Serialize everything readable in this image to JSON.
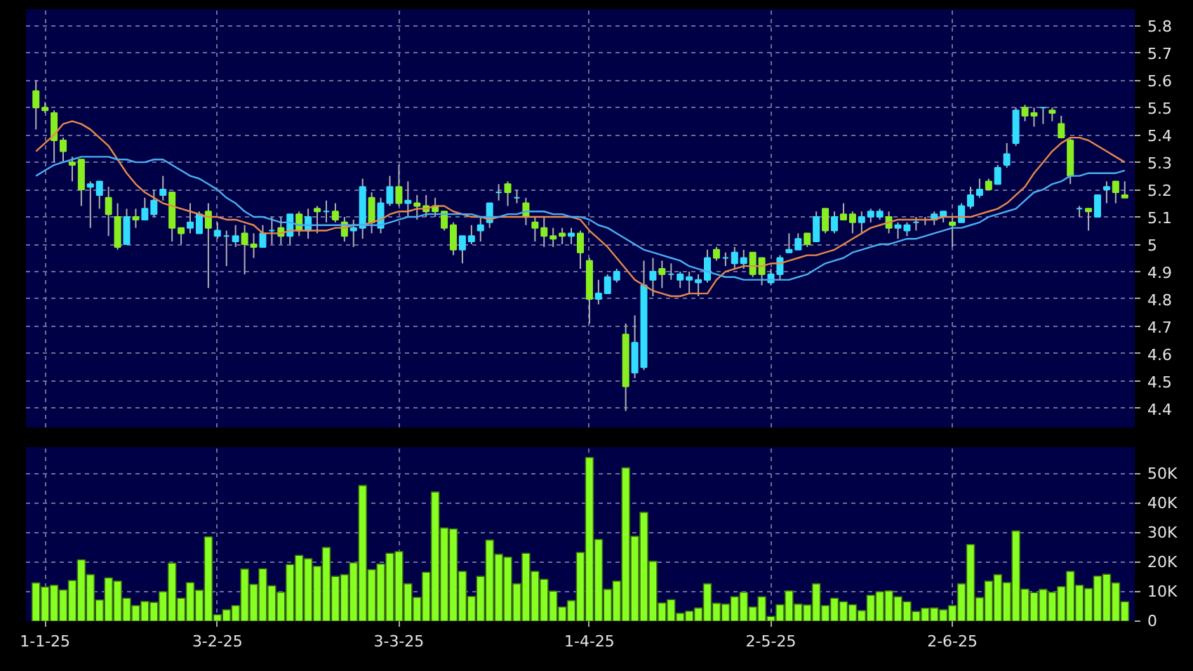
{
  "chart_data": [
    {
      "type": "candlestick",
      "ylim": [
        4.33,
        5.86
      ],
      "categories": [
        null,
        null,
        null,
        null,
        null,
        null,
        null,
        null,
        null,
        null,
        null,
        null,
        null,
        null,
        null,
        null,
        null,
        null,
        null,
        null,
        null,
        null,
        null,
        null,
        null,
        null,
        null,
        null,
        null,
        null,
        null,
        null,
        null,
        null,
        null,
        null,
        null,
        null,
        null,
        null,
        null,
        null,
        null,
        null,
        null,
        null,
        null,
        null,
        null,
        null,
        null,
        null,
        null,
        null,
        null,
        null,
        null,
        null,
        null,
        null,
        null,
        null,
        null,
        null,
        null,
        null,
        null,
        null,
        null,
        null,
        null,
        null,
        null,
        null,
        null,
        null,
        null,
        null,
        null,
        null,
        null,
        null,
        null,
        null,
        null,
        null,
        null,
        null,
        null,
        null,
        null,
        null,
        null,
        null,
        null,
        null,
        null,
        null,
        null,
        null,
        null,
        null,
        null,
        null,
        null,
        null,
        null,
        null,
        null,
        null,
        null,
        null,
        null,
        null,
        null,
        null,
        null,
        null,
        null,
        null,
        null
      ],
      "yticks": [
        4.4,
        4.5,
        4.6,
        4.7,
        4.8,
        4.9,
        5,
        5.1,
        5.2,
        5.3,
        5.4,
        5.5,
        5.6,
        5.7,
        5.8
      ],
      "grid": true,
      "tick_labels": "y",
      "series": [
        {
          "type": "candlestick",
          "ohlc": [
            [
              5.56,
              5.6,
              5.42,
              5.5
            ],
            [
              5.5,
              5.52,
              5.48,
              5.49
            ],
            [
              5.48,
              5.49,
              5.3,
              5.38
            ],
            [
              5.38,
              5.39,
              5.3,
              5.34
            ],
            [
              5.3,
              5.32,
              5.23,
              5.29
            ],
            [
              5.31,
              5.31,
              5.14,
              5.2
            ],
            [
              5.21,
              5.23,
              5.06,
              5.22
            ],
            [
              5.18,
              5.23,
              5.13,
              5.23
            ],
            [
              5.17,
              5.21,
              5.03,
              5.11
            ],
            [
              5.1,
              5.15,
              4.98,
              4.99
            ],
            [
              5.0,
              5.13,
              5.0,
              5.1
            ],
            [
              5.1,
              5.13,
              5.06,
              5.09
            ],
            [
              5.09,
              5.17,
              5.09,
              5.13
            ],
            [
              5.11,
              5.2,
              5.1,
              5.16
            ],
            [
              5.18,
              5.25,
              5.16,
              5.2
            ],
            [
              5.19,
              5.19,
              5.01,
              5.06
            ],
            [
              5.06,
              5.06,
              5.0,
              5.04
            ],
            [
              5.06,
              5.15,
              5.04,
              5.08
            ],
            [
              5.04,
              5.12,
              5.04,
              5.11
            ],
            [
              5.12,
              5.15,
              4.84,
              5.06
            ],
            [
              5.03,
              5.08,
              5.02,
              5.05
            ],
            [
              5.03,
              5.05,
              4.92,
              5.03
            ],
            [
              5.01,
              5.07,
              4.99,
              5.03
            ],
            [
              5.04,
              5.07,
              4.89,
              5.0
            ],
            [
              5.0,
              5.04,
              4.95,
              4.99
            ],
            [
              4.99,
              5.07,
              4.99,
              5.04
            ],
            [
              5.05,
              5.1,
              5.0,
              5.05
            ],
            [
              5.06,
              5.1,
              5.0,
              5.03
            ],
            [
              5.03,
              5.11,
              5.0,
              5.11
            ],
            [
              5.11,
              5.12,
              5.03,
              5.05
            ],
            [
              5.05,
              5.13,
              5.02,
              5.1
            ],
            [
              5.13,
              5.14,
              5.04,
              5.12
            ],
            [
              5.12,
              5.16,
              5.08,
              5.12
            ],
            [
              5.12,
              5.15,
              5.08,
              5.09
            ],
            [
              5.08,
              5.1,
              5.01,
              5.03
            ],
            [
              5.05,
              5.09,
              4.99,
              5.06
            ],
            [
              5.06,
              5.24,
              5.02,
              5.21
            ],
            [
              5.17,
              5.19,
              5.04,
              5.08
            ],
            [
              5.06,
              5.17,
              5.04,
              5.15
            ],
            [
              5.15,
              5.25,
              5.14,
              5.21
            ],
            [
              5.21,
              5.29,
              5.14,
              5.15
            ],
            [
              5.15,
              5.23,
              5.1,
              5.16
            ],
            [
              5.15,
              5.18,
              5.09,
              5.14
            ],
            [
              5.14,
              5.18,
              5.1,
              5.12
            ],
            [
              5.14,
              5.17,
              5.1,
              5.12
            ],
            [
              5.12,
              5.12,
              5.05,
              5.06
            ],
            [
              5.07,
              5.08,
              4.96,
              4.98
            ],
            [
              4.98,
              5.03,
              4.93,
              5.03
            ],
            [
              5.01,
              5.07,
              5.0,
              5.03
            ],
            [
              5.05,
              5.1,
              5.01,
              5.07
            ],
            [
              5.08,
              5.15,
              5.06,
              5.15
            ],
            [
              5.19,
              5.22,
              5.16,
              5.19
            ],
            [
              5.22,
              5.23,
              5.14,
              5.19
            ],
            [
              5.17,
              5.2,
              5.15,
              5.17
            ],
            [
              5.15,
              5.17,
              5.07,
              5.1
            ],
            [
              5.08,
              5.1,
              5.01,
              5.06
            ],
            [
              5.06,
              5.1,
              4.99,
              5.03
            ],
            [
              5.03,
              5.06,
              4.99,
              5.02
            ],
            [
              5.04,
              5.06,
              5.0,
              5.03
            ],
            [
              5.03,
              5.06,
              5.0,
              5.04
            ],
            [
              5.04,
              5.05,
              4.91,
              4.97
            ],
            [
              4.94,
              4.95,
              4.71,
              4.8
            ],
            [
              4.8,
              4.87,
              4.78,
              4.82
            ],
            [
              4.82,
              4.89,
              4.82,
              4.88
            ],
            [
              4.87,
              4.91,
              4.86,
              4.9
            ],
            [
              4.67,
              4.71,
              4.39,
              4.48
            ],
            [
              4.53,
              4.74,
              4.51,
              4.64
            ],
            [
              4.55,
              4.94,
              4.54,
              4.85
            ],
            [
              4.87,
              4.95,
              4.81,
              4.9
            ],
            [
              4.91,
              4.94,
              4.84,
              4.89
            ],
            [
              4.89,
              4.93,
              4.87,
              4.89
            ],
            [
              4.87,
              4.9,
              4.84,
              4.89
            ],
            [
              4.87,
              4.9,
              4.82,
              4.88
            ],
            [
              4.86,
              4.89,
              4.81,
              4.87
            ],
            [
              4.87,
              4.98,
              4.86,
              4.95
            ],
            [
              4.98,
              4.99,
              4.94,
              4.95
            ],
            [
              4.95,
              4.97,
              4.92,
              4.95
            ],
            [
              4.93,
              4.99,
              4.91,
              4.97
            ],
            [
              4.93,
              4.98,
              4.91,
              4.95
            ],
            [
              4.97,
              4.97,
              4.88,
              4.89
            ],
            [
              4.95,
              4.95,
              4.85,
              4.89
            ],
            [
              4.86,
              4.91,
              4.85,
              4.89
            ],
            [
              4.89,
              4.96,
              4.87,
              4.95
            ],
            [
              4.97,
              5.04,
              4.97,
              4.98
            ],
            [
              4.98,
              5.04,
              4.98,
              5.02
            ],
            [
              5.04,
              5.04,
              4.99,
              5.0
            ],
            [
              5.01,
              5.12,
              5.01,
              5.1
            ],
            [
              5.13,
              5.13,
              5.04,
              5.05
            ],
            [
              5.05,
              5.12,
              5.04,
              5.1
            ],
            [
              5.11,
              5.15,
              5.09,
              5.09
            ],
            [
              5.11,
              5.12,
              5.04,
              5.08
            ],
            [
              5.08,
              5.12,
              5.04,
              5.1
            ],
            [
              5.1,
              5.13,
              5.08,
              5.12
            ],
            [
              5.1,
              5.13,
              5.09,
              5.12
            ],
            [
              5.1,
              5.12,
              5.04,
              5.06
            ],
            [
              5.06,
              5.08,
              5.02,
              5.07
            ],
            [
              5.05,
              5.08,
              5.03,
              5.07
            ],
            [
              5.08,
              5.1,
              5.05,
              5.08
            ],
            [
              5.09,
              5.1,
              5.07,
              5.09
            ],
            [
              5.09,
              5.12,
              5.07,
              5.11
            ],
            [
              5.1,
              5.12,
              5.08,
              5.12
            ],
            [
              5.08,
              5.1,
              4.99,
              5.07
            ],
            [
              5.08,
              5.15,
              5.08,
              5.14
            ],
            [
              5.14,
              5.21,
              5.13,
              5.18
            ],
            [
              5.18,
              5.24,
              5.17,
              5.2
            ],
            [
              5.23,
              5.24,
              5.2,
              5.2
            ],
            [
              5.22,
              5.29,
              5.22,
              5.28
            ],
            [
              5.29,
              5.37,
              5.28,
              5.33
            ],
            [
              5.37,
              5.5,
              5.36,
              5.49
            ],
            [
              5.5,
              5.51,
              5.45,
              5.47
            ],
            [
              5.48,
              5.5,
              5.43,
              5.47
            ],
            [
              5.5,
              5.5,
              5.44,
              5.5
            ],
            [
              5.49,
              5.5,
              5.45,
              5.48
            ],
            [
              5.44,
              5.47,
              5.39,
              5.39
            ],
            [
              5.38,
              5.39,
              5.22,
              5.25
            ],
            [
              5.13,
              5.14,
              5.1,
              5.13
            ],
            [
              5.13,
              5.13,
              5.05,
              5.12
            ],
            [
              5.1,
              5.18,
              5.1,
              5.18
            ],
            [
              5.2,
              5.23,
              5.15,
              5.21
            ],
            [
              5.23,
              5.23,
              5.15,
              5.19
            ],
            [
              5.18,
              5.23,
              5.17,
              5.17
            ]
          ],
          "colors": [
            "#88ee22",
            "#88ee22",
            "#88ee22",
            "#88ee22",
            "#88ee22",
            "#88ee22",
            "#33ddff",
            "#33ddff",
            "#88ee22",
            "#88ee22",
            "#33ddff",
            "#88ee22",
            "#33ddff",
            "#33ddff",
            "#33ddff",
            "#88ee22",
            "#88ee22",
            "#33ddff",
            "#33ddff",
            "#88ee22",
            "#33ddff",
            "#33ddff",
            "#33ddff",
            "#88ee22",
            "#88ee22",
            "#33ddff",
            "#33ddff",
            "#88ee22",
            "#33ddff",
            "#88ee22",
            "#33ddff",
            "#88ee22",
            "#33ddff",
            "#88ee22",
            "#88ee22",
            "#33ddff",
            "#33ddff",
            "#88ee22",
            "#33ddff",
            "#33ddff",
            "#88ee22",
            "#33ddff",
            "#88ee22",
            "#88ee22",
            "#88ee22",
            "#88ee22",
            "#88ee22",
            "#33ddff",
            "#33ddff",
            "#33ddff",
            "#33ddff",
            "#33ddff",
            "#88ee22",
            "#33ddff",
            "#88ee22",
            "#88ee22",
            "#88ee22",
            "#88ee22",
            "#88ee22",
            "#33ddff",
            "#88ee22",
            "#88ee22",
            "#33ddff",
            "#33ddff",
            "#33ddff",
            "#88ee22",
            "#33ddff",
            "#33ddff",
            "#33ddff",
            "#88ee22",
            "#33ddff",
            "#33ddff",
            "#33ddff",
            "#33ddff",
            "#33ddff",
            "#88ee22",
            "#33ddff",
            "#33ddff",
            "#33ddff",
            "#88ee22",
            "#88ee22",
            "#33ddff",
            "#33ddff",
            "#33ddff",
            "#33ddff",
            "#88ee22",
            "#33ddff",
            "#88ee22",
            "#33ddff",
            "#88ee22",
            "#88ee22",
            "#33ddff",
            "#33ddff",
            "#33ddff",
            "#88ee22",
            "#33ddff",
            "#33ddff",
            "#33ddff",
            "#33ddff",
            "#33ddff",
            "#33ddff",
            "#88ee22",
            "#33ddff",
            "#33ddff",
            "#33ddff",
            "#88ee22",
            "#33ddff",
            "#33ddff",
            "#33ddff",
            "#88ee22",
            "#88ee22",
            "#33ddff",
            "#88ee22",
            "#88ee22",
            "#88ee22",
            "#33ddff",
            "#88ee22",
            "#33ddff",
            "#33ddff",
            "#88ee22",
            "#88ee22"
          ]
        },
        {
          "type": "line",
          "color": "#e8884a",
          "values": [
            5.34,
            5.37,
            5.4,
            5.44,
            5.45,
            5.44,
            5.42,
            5.39,
            5.36,
            5.31,
            5.26,
            5.22,
            5.19,
            5.17,
            5.15,
            5.14,
            5.13,
            5.12,
            5.11,
            5.1,
            5.1,
            5.09,
            5.09,
            5.08,
            5.07,
            5.04,
            5.04,
            5.04,
            5.05,
            5.05,
            5.05,
            5.05,
            5.05,
            5.06,
            5.06,
            5.07,
            5.07,
            5.08,
            5.09,
            5.11,
            5.12,
            5.12,
            5.13,
            5.13,
            5.14,
            5.14,
            5.12,
            5.11,
            5.1,
            5.1,
            5.09,
            5.1,
            5.1,
            5.1,
            5.1,
            5.1,
            5.1,
            5.1,
            5.1,
            5.1,
            5.09,
            5.05,
            5.02,
            4.99,
            4.95,
            4.91,
            4.87,
            4.85,
            4.83,
            4.82,
            4.81,
            4.81,
            4.82,
            4.82,
            4.82,
            4.87,
            4.9,
            4.91,
            4.92,
            4.92,
            4.92,
            4.93,
            4.93,
            4.94,
            4.95,
            4.96,
            4.96,
            4.97,
            4.98,
            5.0,
            5.02,
            5.04,
            5.06,
            5.07,
            5.08,
            5.09,
            5.09,
            5.09,
            5.09,
            5.09,
            5.1,
            5.1,
            5.1,
            5.1,
            5.11,
            5.12,
            5.13,
            5.15,
            5.18,
            5.21,
            5.26,
            5.3,
            5.34,
            5.37,
            5.39,
            5.39,
            5.38,
            5.36,
            5.34,
            5.32,
            5.3
          ]
        },
        {
          "type": "line",
          "color": "#4aaef0",
          "values": [
            5.25,
            5.27,
            5.29,
            5.3,
            5.31,
            5.32,
            5.32,
            5.32,
            5.32,
            5.31,
            5.31,
            5.3,
            5.3,
            5.31,
            5.31,
            5.29,
            5.27,
            5.25,
            5.24,
            5.22,
            5.2,
            5.17,
            5.15,
            5.12,
            5.1,
            5.1,
            5.09,
            5.08,
            5.08,
            5.07,
            5.07,
            5.07,
            5.07,
            5.07,
            5.07,
            5.07,
            5.07,
            5.07,
            5.07,
            5.08,
            5.09,
            5.1,
            5.1,
            5.11,
            5.11,
            5.11,
            5.11,
            5.11,
            5.11,
            5.1,
            5.1,
            5.1,
            5.11,
            5.11,
            5.12,
            5.12,
            5.12,
            5.11,
            5.11,
            5.1,
            5.1,
            5.09,
            5.07,
            5.06,
            5.04,
            5.02,
            5.0,
            4.98,
            4.97,
            4.96,
            4.95,
            4.94,
            4.92,
            4.91,
            4.9,
            4.89,
            4.88,
            4.88,
            4.87,
            4.87,
            4.87,
            4.87,
            4.87,
            4.87,
            4.88,
            4.89,
            4.91,
            4.93,
            4.94,
            4.95,
            4.97,
            4.98,
            4.99,
            5.0,
            5.0,
            5.01,
            5.02,
            5.02,
            5.03,
            5.04,
            5.05,
            5.06,
            5.06,
            5.07,
            5.08,
            5.1,
            5.11,
            5.12,
            5.13,
            5.16,
            5.19,
            5.2,
            5.22,
            5.23,
            5.25,
            5.25,
            5.26,
            5.26,
            5.26,
            5.26,
            5.27
          ]
        }
      ]
    },
    {
      "type": "bar",
      "color": "#88ff22",
      "ylim": [
        0,
        59000
      ],
      "categories": [
        null,
        "1-1-25",
        null,
        null,
        null,
        null,
        null,
        null,
        null,
        null,
        null,
        null,
        null,
        null,
        null,
        null,
        null,
        null,
        null,
        null,
        "3-2-25",
        null,
        null,
        null,
        null,
        null,
        null,
        null,
        null,
        null,
        null,
        null,
        null,
        null,
        null,
        null,
        null,
        null,
        null,
        null,
        "3-3-25",
        null,
        null,
        null,
        null,
        null,
        null,
        null,
        null,
        null,
        null,
        null,
        null,
        null,
        null,
        null,
        null,
        null,
        null,
        null,
        null,
        "1-4-25",
        null,
        null,
        null,
        null,
        null,
        null,
        null,
        null,
        null,
        null,
        null,
        null,
        null,
        null,
        null,
        null,
        null,
        null,
        null,
        "2-5-25",
        null,
        null,
        null,
        null,
        null,
        null,
        null,
        null,
        null,
        null,
        null,
        null,
        null,
        null,
        null,
        null,
        null,
        null,
        null,
        "2-6-25",
        null,
        null,
        null,
        null,
        null,
        null,
        null,
        null,
        null,
        null,
        null,
        null,
        null,
        null,
        null,
        null,
        null,
        null,
        null
      ],
      "yticks": [
        {
          "value": 0,
          "label": "0"
        },
        {
          "value": 10000,
          "label": "10K"
        },
        {
          "value": 20000,
          "label": "20K"
        },
        {
          "value": 30000,
          "label": "30K"
        },
        {
          "value": 40000,
          "label": "40K"
        },
        {
          "value": 50000,
          "label": "50K"
        }
      ],
      "grid": true,
      "values": [
        13000,
        11600,
        12200,
        10600,
        13800,
        20800,
        15800,
        7200,
        14700,
        13600,
        7800,
        5300,
        6700,
        6400,
        10000,
        19700,
        7800,
        13100,
        10500,
        28600,
        2200,
        3900,
        5300,
        17700,
        12500,
        17800,
        12000,
        9800,
        19200,
        22300,
        21200,
        18600,
        25000,
        15200,
        15800,
        19800,
        46000,
        17500,
        19400,
        23000,
        23600,
        12700,
        8100,
        16600,
        43800,
        31600,
        31300,
        16900,
        8400,
        15200,
        27500,
        22700,
        21700,
        12700,
        23000,
        16900,
        14200,
        10200,
        4800,
        7000,
        23300,
        55500,
        27700,
        10800,
        13600,
        52000,
        28800,
        36900,
        20300,
        6200,
        7300,
        2700,
        3400,
        4500,
        12700,
        6100,
        5800,
        8300,
        9800,
        4800,
        8300,
        1600,
        5600,
        10300,
        5800,
        5500,
        12700,
        5300,
        7800,
        6600,
        5600,
        3600,
        8800,
        10000,
        10300,
        8300,
        6600,
        3300,
        4400,
        4500,
        3900,
        5300,
        12700,
        26000,
        8000,
        13600,
        15800,
        13100,
        30600,
        10900,
        9700,
        10800,
        9800,
        11700,
        16900,
        12200,
        11100,
        15300,
        15900,
        13000,
        6600
      ]
    }
  ]
}
